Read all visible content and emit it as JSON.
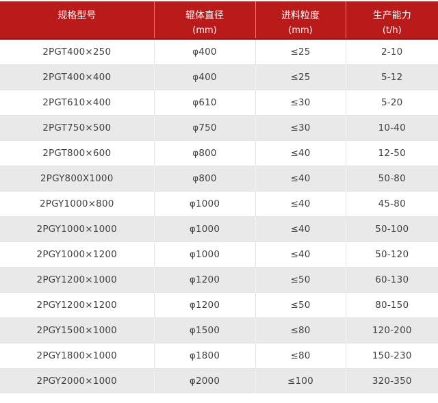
{
  "colors": {
    "header_bg": "#b91a1a",
    "header_border": "#9e1111",
    "header_text": "#ffffff",
    "row_alt": "#e9e9e9",
    "row_border": "#e4e4e4",
    "text": "#404040"
  },
  "table": {
    "header": [
      {
        "line1": "规格型号",
        "line2": ""
      },
      {
        "line1": "辊体直径",
        "line2": "(mm)"
      },
      {
        "line1": "进料粒度",
        "line2": "(mm)"
      },
      {
        "line1": "生产能力",
        "line2": "(t/h)"
      }
    ],
    "rows": [
      [
        "2PGT400×250",
        "φ400",
        "≤25",
        "2-10"
      ],
      [
        "2PGT400×400",
        "φ400",
        "≤25",
        "5-12"
      ],
      [
        "2PGT610×400",
        "φ610",
        "≤30",
        "5-20"
      ],
      [
        "2PGT750×500",
        "φ750",
        "≤30",
        "10-40"
      ],
      [
        "2PGT800×600",
        "φ800",
        "≤40",
        "12-50"
      ],
      [
        "2PGY800X1000",
        "φ800",
        "≤40",
        "50-80"
      ],
      [
        "2PGY1000×800",
        "φ1000",
        "≤40",
        "45-80"
      ],
      [
        "2PGY1000×1000",
        "φ1000",
        "≤40",
        "50-100"
      ],
      [
        "2PGY1000×1200",
        "φ1000",
        "≤40",
        "50-120"
      ],
      [
        "2PGY1200×1000",
        "φ1200",
        "≤50",
        "60-130"
      ],
      [
        "2PGY1200×1200",
        "φ1200",
        "≤50",
        "80-150"
      ],
      [
        "2PGY1500×1000",
        "φ1500",
        "≤80",
        "120-200"
      ],
      [
        "2PGY1800×1000",
        "φ1800",
        "≤80",
        "150-230"
      ],
      [
        "2PGY2000×1000",
        "φ2000",
        "≤100",
        "320-350"
      ]
    ]
  },
  "chart_data": {
    "type": "table",
    "title": "",
    "columns": [
      "规格型号",
      "辊体直径 (mm)",
      "进料粒度 (mm)",
      "生产能力 (t/h)"
    ],
    "rows": [
      [
        "2PGT400×250",
        "φ400",
        "≤25",
        "2-10"
      ],
      [
        "2PGT400×400",
        "φ400",
        "≤25",
        "5-12"
      ],
      [
        "2PGT610×400",
        "φ610",
        "≤30",
        "5-20"
      ],
      [
        "2PGT750×500",
        "φ750",
        "≤30",
        "10-40"
      ],
      [
        "2PGT800×600",
        "φ800",
        "≤40",
        "12-50"
      ],
      [
        "2PGY800X1000",
        "φ800",
        "≤40",
        "50-80"
      ],
      [
        "2PGY1000×800",
        "φ1000",
        "≤40",
        "45-80"
      ],
      [
        "2PGY1000×1000",
        "φ1000",
        "≤40",
        "50-100"
      ],
      [
        "2PGY1000×1200",
        "φ1000",
        "≤40",
        "50-120"
      ],
      [
        "2PGY1200×1000",
        "φ1200",
        "≤50",
        "60-130"
      ],
      [
        "2PGY1200×1200",
        "φ1200",
        "≤50",
        "80-150"
      ],
      [
        "2PGY1500×1000",
        "φ1500",
        "≤80",
        "120-200"
      ],
      [
        "2PGY1800×1000",
        "φ1800",
        "≤80",
        "150-230"
      ],
      [
        "2PGY2000×1000",
        "φ2000",
        "≤100",
        "320-350"
      ]
    ],
    "layout": {
      "header_background": "#b91a1a",
      "alternating_rows": true,
      "all_cells_centered": true
    }
  }
}
